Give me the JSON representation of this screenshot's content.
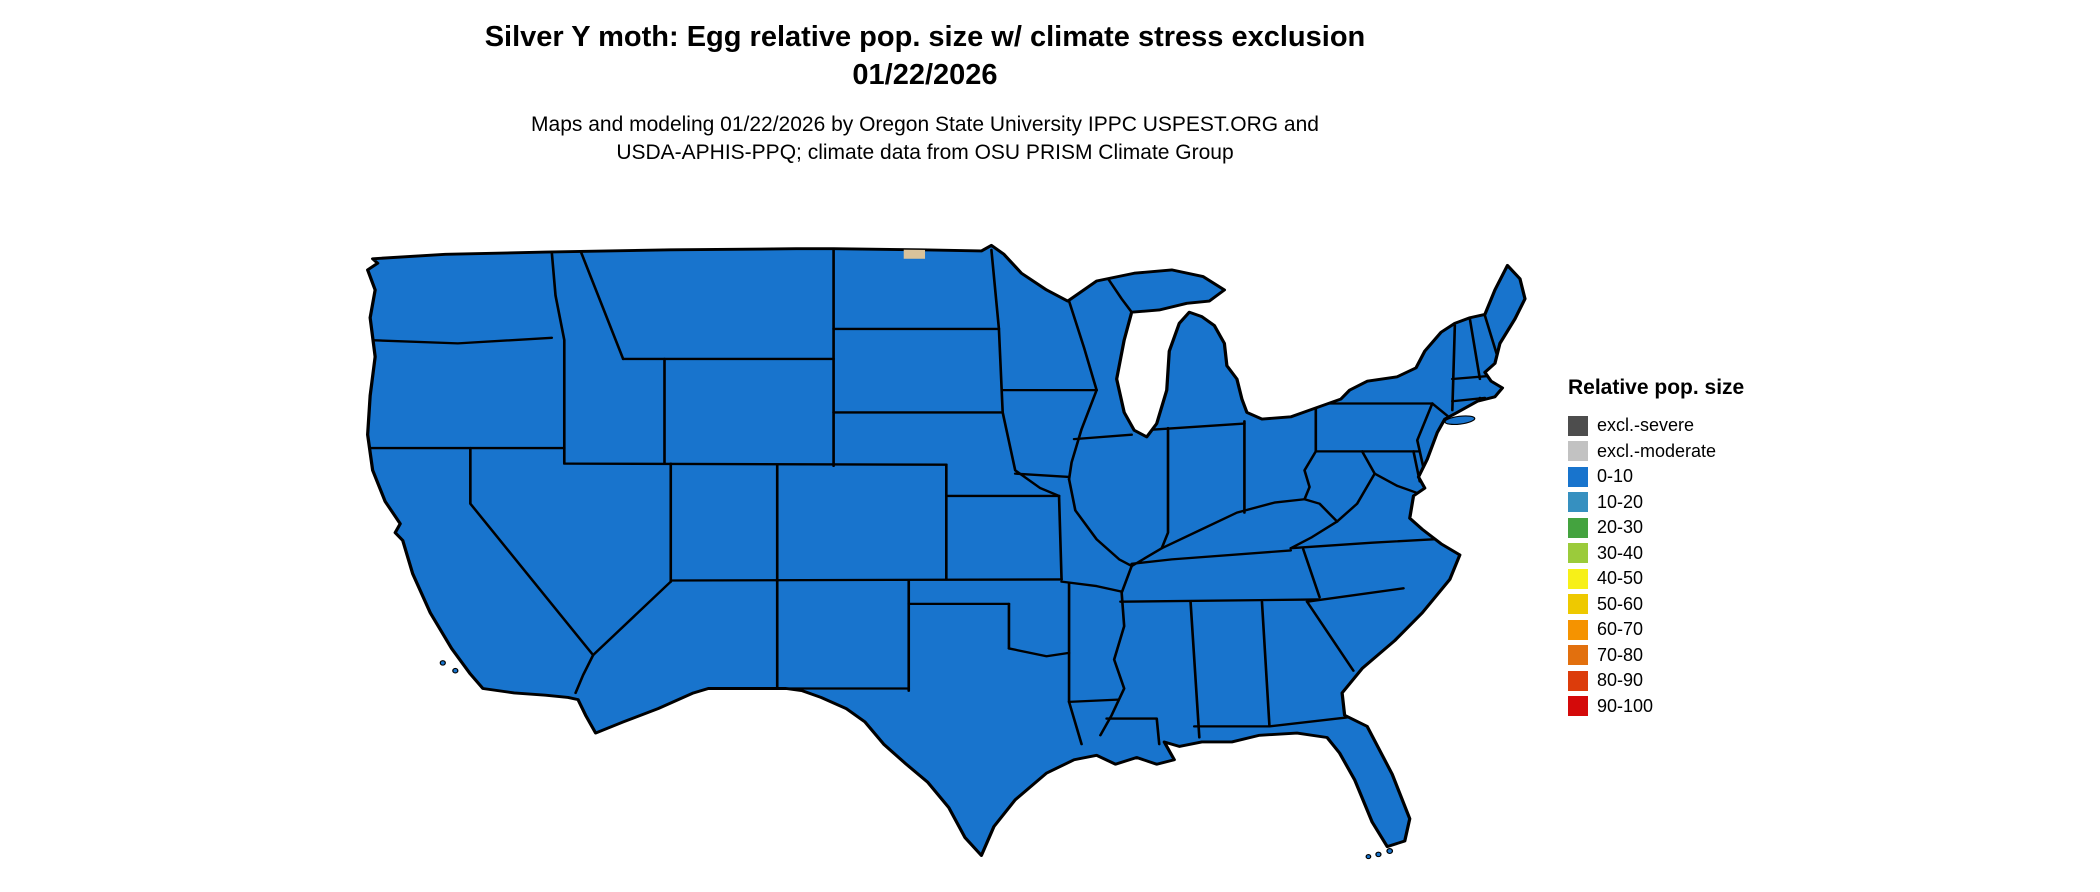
{
  "title": {
    "line1": "Silver Y moth: Egg relative pop. size w/ climate stress exclusion",
    "line2": "01/22/2026"
  },
  "subtitle": {
    "line1": "Maps and modeling 01/22/2026 by Oregon State University IPPC USPEST.ORG and",
    "line2": "USDA-APHIS-PPQ; climate data from OSU PRISM Climate Group"
  },
  "map": {
    "region": "Conterminous United States with state borders",
    "fill_color": "#1874CD",
    "border_color": "#000000",
    "excluded_patch_color": "#D9C39B",
    "background": "#FFFFFF"
  },
  "legend": {
    "title": "Relative pop. size",
    "items": [
      {
        "label": "excl.-severe",
        "color": "#4D4D4D"
      },
      {
        "label": "excl.-moderate",
        "color": "#C2C2C2"
      },
      {
        "label": "0-10",
        "color": "#1874CD"
      },
      {
        "label": "10-20",
        "color": "#3690C0"
      },
      {
        "label": "20-30",
        "color": "#44A33F"
      },
      {
        "label": "30-40",
        "color": "#9BCB3B"
      },
      {
        "label": "40-50",
        "color": "#F7F018"
      },
      {
        "label": "50-60",
        "color": "#EEC900"
      },
      {
        "label": "60-70",
        "color": "#F59300"
      },
      {
        "label": "70-80",
        "color": "#E2700E"
      },
      {
        "label": "80-90",
        "color": "#DC3C0B"
      },
      {
        "label": "90-100",
        "color": "#D40A0A"
      }
    ]
  }
}
